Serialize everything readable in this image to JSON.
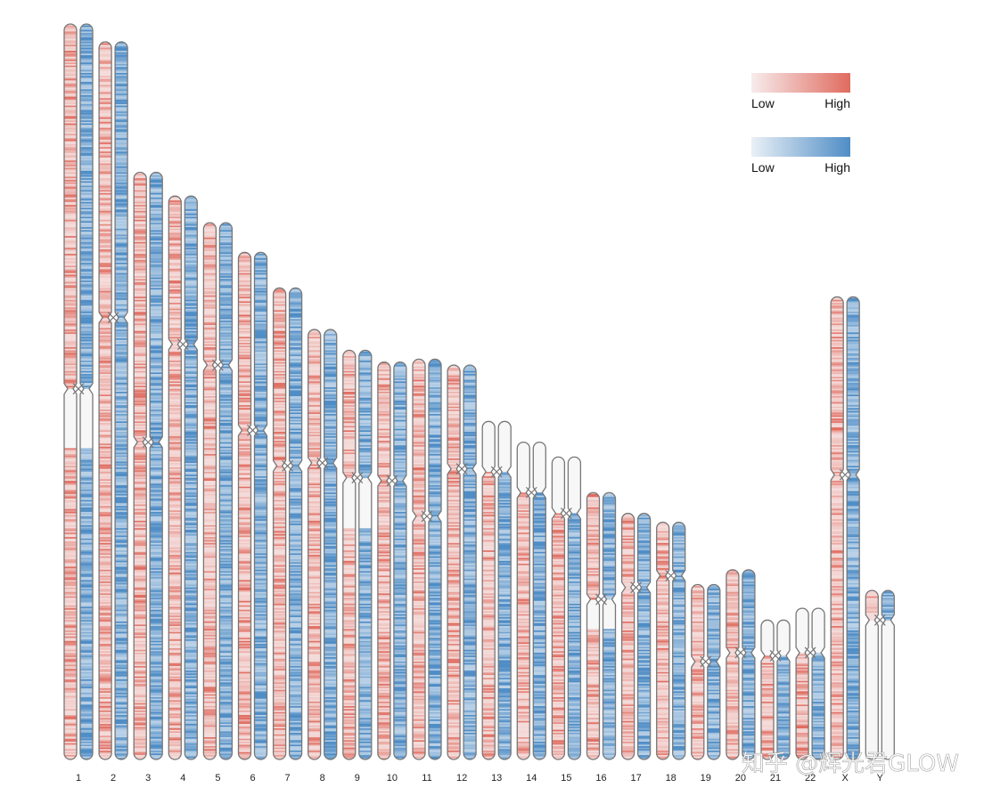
{
  "chart_data": {
    "type": "heatmap",
    "subtype": "chromosome-ideogram",
    "title": "",
    "tracks": [
      {
        "name": "track-red",
        "palette": [
          "#f7ecec",
          "#e06b5f"
        ]
      },
      {
        "name": "track-blue",
        "palette": [
          "#eaf0f6",
          "#4f8dc6"
        ]
      }
    ],
    "legend": [
      {
        "low_label": "Low",
        "high_label": "High",
        "palette": [
          "#f7ecec",
          "#e06b5f"
        ]
      },
      {
        "low_label": "Low",
        "high_label": "High",
        "palette": [
          "#eaf0f6",
          "#4f8dc6"
        ]
      }
    ],
    "chromosomes": [
      {
        "label": "1",
        "length": 248,
        "centromere": 123,
        "empty": [
          [
            123,
            143
          ]
        ]
      },
      {
        "label": "2",
        "length": 242,
        "centromere": 93,
        "empty": []
      },
      {
        "label": "3",
        "length": 198,
        "centromere": 91,
        "empty": []
      },
      {
        "label": "4",
        "length": 190,
        "centromere": 50,
        "empty": []
      },
      {
        "label": "5",
        "length": 181,
        "centromere": 48,
        "empty": []
      },
      {
        "label": "6",
        "length": 171,
        "centromere": 60,
        "empty": []
      },
      {
        "label": "7",
        "length": 159,
        "centromere": 60,
        "empty": []
      },
      {
        "label": "8",
        "length": 145,
        "centromere": 45,
        "empty": []
      },
      {
        "label": "9",
        "length": 138,
        "centromere": 43,
        "empty": [
          [
            43,
            60
          ]
        ]
      },
      {
        "label": "10",
        "length": 134,
        "centromere": 40,
        "empty": []
      },
      {
        "label": "11",
        "length": 135,
        "centromere": 53,
        "empty": []
      },
      {
        "label": "12",
        "length": 133,
        "centromere": 35,
        "empty": []
      },
      {
        "label": "13",
        "length": 114,
        "centromere": 17,
        "empty": [
          [
            0,
            17
          ]
        ]
      },
      {
        "label": "14",
        "length": 107,
        "centromere": 17,
        "empty": [
          [
            0,
            17
          ]
        ]
      },
      {
        "label": "15",
        "length": 102,
        "centromere": 19,
        "empty": [
          [
            0,
            19
          ]
        ]
      },
      {
        "label": "16",
        "length": 90,
        "centromere": 36,
        "empty": [
          [
            36,
            46
          ]
        ]
      },
      {
        "label": "17",
        "length": 83,
        "centromere": 25,
        "empty": []
      },
      {
        "label": "18",
        "length": 80,
        "centromere": 18,
        "empty": []
      },
      {
        "label": "19",
        "length": 59,
        "centromere": 26,
        "empty": []
      },
      {
        "label": "20",
        "length": 64,
        "centromere": 28,
        "empty": []
      },
      {
        "label": "21",
        "length": 47,
        "centromere": 12,
        "empty": [
          [
            0,
            12
          ]
        ]
      },
      {
        "label": "22",
        "length": 51,
        "centromere": 15,
        "empty": [
          [
            0,
            15
          ]
        ]
      },
      {
        "label": "X",
        "length": 156,
        "centromere": 60,
        "empty": []
      },
      {
        "label": "Y",
        "length": 57,
        "centromere": 10,
        "empty": [
          [
            10,
            57
          ]
        ]
      }
    ],
    "intensity_note": "density values per bin in arbitrary units 0-1"
  },
  "watermark": "知乎 @辉光君GLOW"
}
